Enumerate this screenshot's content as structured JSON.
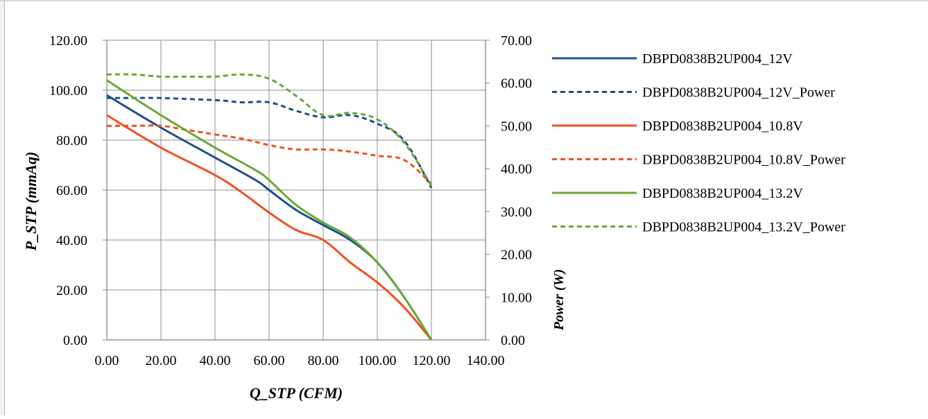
{
  "chart_data": {
    "type": "line",
    "xlabel": "Q_STP (CFM)",
    "ylabel": "P_STP (mmAq)",
    "y2label": "Power (W)",
    "xlim": [
      0,
      140
    ],
    "ylim": [
      0,
      120
    ],
    "y2lim": [
      0,
      70
    ],
    "x_ticks": [
      "0.00",
      "20.00",
      "40.00",
      "60.00",
      "80.00",
      "100.00",
      "120.00",
      "140.00"
    ],
    "y_ticks": [
      "0.00",
      "20.00",
      "40.00",
      "60.00",
      "80.00",
      "100.00",
      "120.00"
    ],
    "y2_ticks": [
      "0.00",
      "10.00",
      "20.00",
      "30.00",
      "40.00",
      "50.00",
      "60.00",
      "70.00"
    ],
    "grid": true,
    "legend_position": "right",
    "series": [
      {
        "name": "DBPD0838B2UP004_12V",
        "axis": "left",
        "dash": false,
        "color": "#1f4e8c",
        "x": [
          0,
          20,
          40,
          55,
          60,
          70,
          80,
          90,
          100,
          110,
          120
        ],
        "y": [
          98,
          85,
          73,
          64,
          60,
          52,
          46,
          40,
          31,
          17,
          0
        ]
      },
      {
        "name": "DBPD0838B2UP004_12V_Power",
        "axis": "right",
        "dash": true,
        "color": "#1f4e8c",
        "x": [
          0,
          10,
          20,
          40,
          50,
          60,
          70,
          80,
          90,
          100,
          110,
          120
        ],
        "y": [
          56.5,
          56.5,
          56.5,
          56,
          55.5,
          55.5,
          53.5,
          52,
          52.5,
          50.5,
          46.5,
          35.5
        ]
      },
      {
        "name": "DBPD0838B2UP004_10.8V",
        "axis": "left",
        "dash": false,
        "color": "#f25022",
        "x": [
          0,
          20,
          40,
          50,
          60,
          70,
          80,
          90,
          100,
          110,
          120
        ],
        "y": [
          90,
          77,
          66,
          59,
          51,
          44,
          40,
          31,
          23,
          13,
          0
        ]
      },
      {
        "name": "DBPD0838B2UP004_10.8V_Power",
        "axis": "right",
        "dash": true,
        "color": "#f25022",
        "x": [
          0,
          10,
          20,
          30,
          40,
          50,
          60,
          70,
          80,
          90,
          100,
          110,
          120
        ],
        "y": [
          50,
          50,
          50,
          49,
          48,
          47,
          45.5,
          44.5,
          44.5,
          44,
          43,
          42,
          36.5
        ]
      },
      {
        "name": "DBPD0838B2UP004_13.2V",
        "axis": "left",
        "dash": false,
        "color": "#6aa834",
        "x": [
          0,
          20,
          40,
          55,
          60,
          70,
          80,
          90,
          100,
          110,
          120
        ],
        "y": [
          104,
          90,
          77,
          68,
          64,
          54,
          47,
          41,
          31,
          17,
          0
        ]
      },
      {
        "name": "DBPD0838B2UP004_13.2V_Power",
        "axis": "right",
        "dash": true,
        "color": "#6aa834",
        "x": [
          0,
          10,
          20,
          30,
          40,
          50,
          60,
          70,
          80,
          90,
          100,
          110,
          120
        ],
        "y": [
          62,
          62,
          61.5,
          61.5,
          61.5,
          62,
          61,
          57,
          52.5,
          53,
          51.5,
          46,
          36
        ]
      }
    ]
  }
}
